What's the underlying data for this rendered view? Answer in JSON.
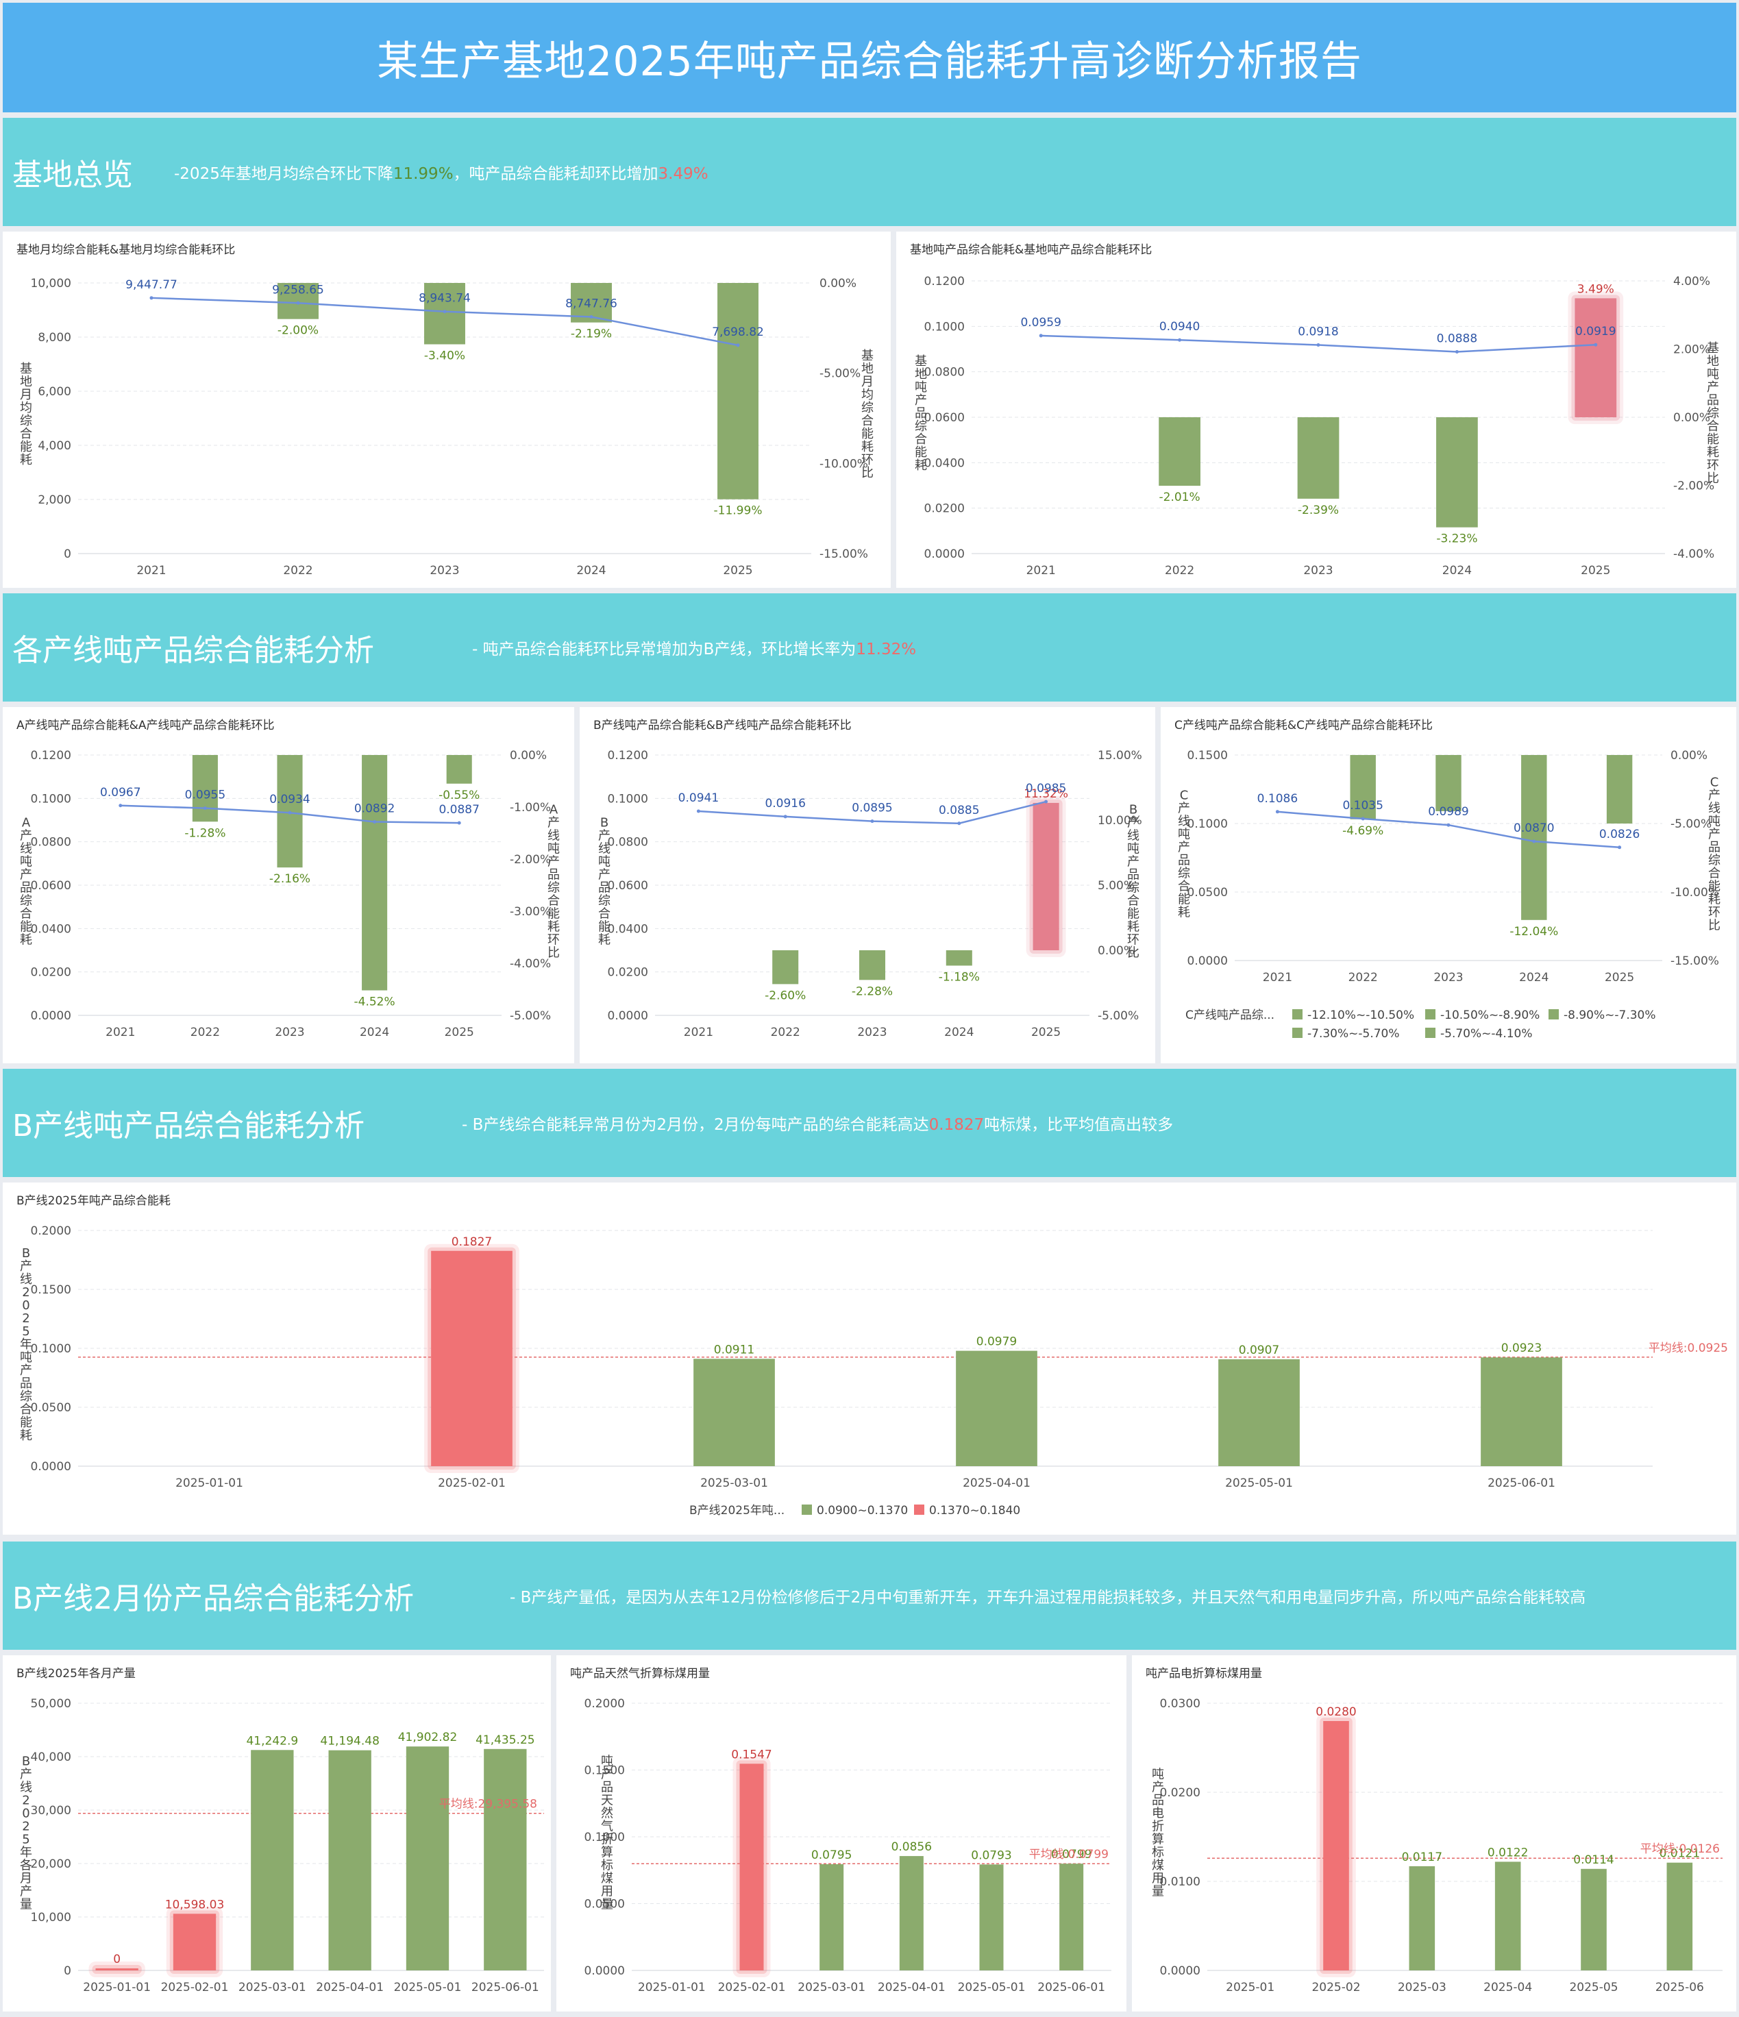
{
  "page": {
    "title": "某生产基地2025年吨产品综合能耗升高诊断分析报告"
  },
  "sections": [
    {
      "title": "基地总览",
      "note_pre": "-2025年基地月均综合环比下降",
      "note_hl": "11.99%",
      "note_mid": "，吨产品综合能耗却环比增加",
      "note_hl2": "3.49%",
      "note_post": ""
    },
    {
      "title": "各产线吨产品综合能耗分析",
      "note_pre": "- 吨产品综合能耗环比异常增加为B产线，环比增长率为",
      "note_hl": "11.32%",
      "note_mid": "",
      "note_hl2": "",
      "note_post": ""
    },
    {
      "title": "B产线吨产品综合能耗分析",
      "note_pre": "- B产线综合能耗异常月份为2月份，2月份每吨产品的综合能耗高达",
      "note_hl": "0.1827",
      "note_mid": "吨标煤，比平均值高出较多",
      "note_hl2": "",
      "note_post": ""
    },
    {
      "title": "B产线2月份产品综合能耗分析",
      "note_pre": "- B产线产量低，是因为从去年12月份检修修后于2月中旬重新开车，开车升温过程用能损耗较多，并且天然气和用电量同步升高，所以吨产品综合能耗较高",
      "note_hl": "",
      "note_mid": "",
      "note_hl2": "",
      "note_post": ""
    }
  ],
  "colors": {
    "green": "#8bab6d",
    "red": "#f07275",
    "pink": "#e47f8d",
    "line": "#6c8fdb",
    "blue_label": "#2f56a6",
    "green_label": "#5a8a22",
    "red_label": "#c83a3a",
    "avg": "#e46a6a"
  },
  "chart_data": [
    {
      "id": "c1",
      "type": "bar+line",
      "title": "基地月均综合能耗&基地月均综合能耗环比",
      "categories": [
        "2021",
        "2022",
        "2023",
        "2024",
        "2025"
      ],
      "ylabel": "基地月均综合能耗",
      "y2label": "基地月均综合能耗环比",
      "ylim": [
        0,
        10000
      ],
      "yticks": [
        0,
        2000,
        4000,
        6000,
        8000,
        10000
      ],
      "yticklabels": [
        "0",
        "2,000",
        "4,000",
        "6,000",
        "8,000",
        "10,000"
      ],
      "y2lim": [
        -15,
        0
      ],
      "y2ticks": [
        0,
        -5,
        -10,
        -15
      ],
      "y2ticklabels": [
        "0.00%",
        "-5.00%",
        "-10.00%",
        "-15.00%"
      ],
      "line": {
        "values": [
          9447.77,
          9258.65,
          8943.74,
          8747.76,
          7698.82
        ],
        "labels": [
          "9,447.77",
          "9,258.65",
          "8,943.74",
          "8,747.76",
          "7,698.82"
        ]
      },
      "bars": {
        "values": [
          null,
          -2.0,
          -3.4,
          -2.19,
          -11.99
        ],
        "labels": [
          "",
          "-2.00%",
          "-3.40%",
          "-2.19%",
          "-11.99%"
        ],
        "highlight": []
      }
    },
    {
      "id": "c2",
      "type": "bar+line",
      "title": "基地吨产品综合能耗&基地吨产品综合能耗环比",
      "categories": [
        "2021",
        "2022",
        "2023",
        "2024",
        "2025"
      ],
      "ylabel": "基地吨产品综合能耗",
      "y2label": "基地吨产品综合能耗环比",
      "ylim": [
        0,
        0.12
      ],
      "yticks": [
        0,
        0.02,
        0.04,
        0.06,
        0.08,
        0.1,
        0.12
      ],
      "yticklabels": [
        "0.0000",
        "0.0200",
        "0.0400",
        "0.0600",
        "0.0800",
        "0.1000",
        "0.1200"
      ],
      "y2lim": [
        -4,
        4
      ],
      "y2ticks": [
        4,
        2,
        0,
        -2,
        -4
      ],
      "y2ticklabels": [
        "4.00%",
        "2.00%",
        "0.00%",
        "-2.00%",
        "-4.00%"
      ],
      "line": {
        "values": [
          0.0959,
          0.094,
          0.0918,
          0.0888,
          0.0919
        ],
        "labels": [
          "0.0959",
          "0.0940",
          "0.0918",
          "0.0888",
          "0.0919"
        ]
      },
      "bars": {
        "values": [
          null,
          -2.01,
          -2.39,
          -3.23,
          3.49
        ],
        "labels": [
          "",
          "-2.01%",
          "-2.39%",
          "-3.23%",
          "3.49%"
        ],
        "highlight": [
          4
        ]
      }
    },
    {
      "id": "c3",
      "type": "bar+line",
      "title": "A产线吨产品综合能耗&A产线吨产品综合能耗环比",
      "categories": [
        "2021",
        "2022",
        "2023",
        "2024",
        "2025"
      ],
      "ylabel": "A产线吨产品综合能耗",
      "y2label": "A产线吨产品综合能耗环比",
      "ylim": [
        0,
        0.12
      ],
      "yticks": [
        0,
        0.02,
        0.04,
        0.06,
        0.08,
        0.1,
        0.12
      ],
      "yticklabels": [
        "0.0000",
        "0.0200",
        "0.0400",
        "0.0600",
        "0.0800",
        "0.1000",
        "0.1200"
      ],
      "y2lim": [
        -5,
        0
      ],
      "y2ticks": [
        0,
        -1,
        -2,
        -3,
        -4,
        -5
      ],
      "y2ticklabels": [
        "0.00%",
        "-1.00%",
        "-2.00%",
        "-3.00%",
        "-4.00%",
        "-5.00%"
      ],
      "line": {
        "values": [
          0.0967,
          0.0955,
          0.0934,
          0.0892,
          0.0887
        ],
        "labels": [
          "0.0967",
          "0.0955",
          "0.0934",
          "0.0892",
          "0.0887"
        ]
      },
      "bars": {
        "values": [
          null,
          -1.28,
          -2.16,
          -4.52,
          -0.55
        ],
        "labels": [
          "",
          "-1.28%",
          "-2.16%",
          "-4.52%",
          "-0.55%"
        ],
        "highlight": []
      }
    },
    {
      "id": "c4",
      "type": "bar+line",
      "title": "B产线吨产品综合能耗&B产线吨产品综合能耗环比",
      "categories": [
        "2021",
        "2022",
        "2023",
        "2024",
        "2025"
      ],
      "ylabel": "B产线吨产品综合能耗",
      "y2label": "B产线吨产品综合能耗环比",
      "ylim": [
        0,
        0.12
      ],
      "yticks": [
        0,
        0.02,
        0.04,
        0.06,
        0.08,
        0.1,
        0.12
      ],
      "yticklabels": [
        "0.0000",
        "0.0200",
        "0.0400",
        "0.0600",
        "0.0800",
        "0.1000",
        "0.1200"
      ],
      "y2lim": [
        -5,
        15
      ],
      "y2ticks": [
        15,
        10,
        5,
        0,
        -5
      ],
      "y2ticklabels": [
        "15.00%",
        "10.00%",
        "5.00%",
        "0.00%",
        "-5.00%"
      ],
      "line": {
        "values": [
          0.0941,
          0.0916,
          0.0895,
          0.0885,
          0.0985
        ],
        "labels": [
          "0.0941",
          "0.0916",
          "0.0895",
          "0.0885",
          "0.0985"
        ]
      },
      "bars": {
        "values": [
          null,
          -2.6,
          -2.28,
          -1.18,
          11.32
        ],
        "labels": [
          "",
          "-2.60%",
          "-2.28%",
          "-1.18%",
          "11.32%"
        ],
        "highlight": [
          4
        ]
      }
    },
    {
      "id": "c5",
      "type": "bar+line",
      "title": "C产线吨产品综合能耗&C产线吨产品综合能耗环比",
      "categories": [
        "2021",
        "2022",
        "2023",
        "2024",
        "2025"
      ],
      "ylabel": "C产线吨产品综合能耗",
      "y2label": "C产线吨产品综合能耗环比",
      "ylim": [
        0,
        0.15
      ],
      "yticks": [
        0,
        0.05,
        0.1,
        0.15
      ],
      "yticklabels": [
        "0.0000",
        "0.0500",
        "0.1000",
        "0.1500"
      ],
      "y2lim": [
        -15,
        0
      ],
      "y2ticks": [
        0,
        -5,
        -10,
        -15
      ],
      "y2ticklabels": [
        "0.00%",
        "-5.00%",
        "-10.00%",
        "-15.00%"
      ],
      "line": {
        "values": [
          0.1086,
          0.1035,
          0.0989,
          0.087,
          0.0826
        ],
        "labels": [
          "0.1086",
          "0.1035",
          "0.0989",
          "0.0870",
          "0.0826"
        ]
      },
      "bars": {
        "values": [
          null,
          -4.69,
          -4.1,
          -12.04,
          -5.0
        ],
        "labels": [
          "",
          "-4.69%",
          "",
          "-12.04%",
          ""
        ],
        "highlight": []
      },
      "legend": {
        "title": "C产线吨产品综...",
        "items": [
          "-12.10%~-10.50%",
          "-10.50%~-8.90%",
          "-8.90%~-7.30%",
          "-7.30%~-5.70%",
          "-5.70%~-4.10%"
        ]
      }
    },
    {
      "id": "c6",
      "type": "bar",
      "title": "B产线2025年吨产品综合能耗",
      "categories": [
        "2025-01-01",
        "2025-02-01",
        "2025-03-01",
        "2025-04-01",
        "2025-05-01",
        "2025-06-01"
      ],
      "ylabel": "B产线2025年吨产品综合能耗",
      "ylim": [
        0,
        0.2
      ],
      "yticks": [
        0,
        0.05,
        0.1,
        0.15,
        0.2
      ],
      "yticklabels": [
        "0.0000",
        "0.0500",
        "0.1000",
        "0.1500",
        "0.2000"
      ],
      "bars": {
        "values": [
          null,
          0.1827,
          0.0911,
          0.0979,
          0.0907,
          0.0923
        ],
        "labels": [
          "",
          "0.1827",
          "0.0911",
          "0.0979",
          "0.0907",
          "0.0923"
        ],
        "highlight": [
          1
        ]
      },
      "avg": {
        "value": 0.0925,
        "label": "平均线:0.0925"
      },
      "legend": {
        "title": "B产线2025年吨...",
        "items": [
          "0.0900~0.1370",
          "0.1370~0.1840"
        ]
      }
    },
    {
      "id": "c7",
      "type": "bar",
      "title": "B产线2025年各月产量",
      "categories": [
        "2025-01-01",
        "2025-02-01",
        "2025-03-01",
        "2025-04-01",
        "2025-05-01",
        "2025-06-01"
      ],
      "ylabel": "B产线2025年各月产量",
      "ylim": [
        0,
        50000
      ],
      "yticks": [
        0,
        10000,
        20000,
        30000,
        40000,
        50000
      ],
      "yticklabels": [
        "0",
        "10,000",
        "20,000",
        "30,000",
        "40,000",
        "50,000"
      ],
      "bars": {
        "values": [
          0,
          10598.03,
          41242.9,
          41194.48,
          41902.82,
          41435.25
        ],
        "labels": [
          "0",
          "10,598.03",
          "41,242.9",
          "41,194.48",
          "41,902.82",
          "41,435.25"
        ],
        "highlight": [
          0,
          1
        ]
      },
      "avg": {
        "value": 29395.58,
        "label": "平均线:29,395.58"
      }
    },
    {
      "id": "c8",
      "type": "bar",
      "title": "吨产品天然气折算标煤用量",
      "categories": [
        "2025-01-01",
        "2025-02-01",
        "2025-03-01",
        "2025-04-01",
        "2025-05-01",
        "2025-06-01"
      ],
      "ylabel": "吨产品天然气折算标煤用量",
      "ylim": [
        0,
        0.2
      ],
      "yticks": [
        0,
        0.05,
        0.1,
        0.15,
        0.2
      ],
      "yticklabels": [
        "0.0000",
        "0.0500",
        "0.1000",
        "0.1500",
        "0.2000"
      ],
      "bars": {
        "values": [
          null,
          0.1547,
          0.0795,
          0.0856,
          0.0793,
          0.0799
        ],
        "labels": [
          "",
          "0.1547",
          "0.0795",
          "0.0856",
          "0.0793",
          "0.0799"
        ],
        "highlight": [
          1
        ]
      },
      "avg": {
        "value": 0.0799,
        "label": "平均线:0.0799"
      }
    },
    {
      "id": "c9",
      "type": "bar",
      "title": "吨产品电折算标煤用量",
      "categories": [
        "2025-01",
        "2025-02",
        "2025-03",
        "2025-04",
        "2025-05",
        "2025-06"
      ],
      "ylabel": "吨产品电折算标煤用量",
      "ylim": [
        0,
        0.03
      ],
      "yticks": [
        0,
        0.01,
        0.02,
        0.03
      ],
      "yticklabels": [
        "0.0000",
        "0.0100",
        "0.0200",
        "0.0300"
      ],
      "bars": {
        "values": [
          null,
          0.028,
          0.0117,
          0.0122,
          0.0114,
          0.0121
        ],
        "labels": [
          "",
          "0.0280",
          "0.0117",
          "0.0122",
          "0.0114",
          "0.0121"
        ],
        "highlight": [
          1
        ]
      },
      "avg": {
        "value": 0.0126,
        "label": "平均线:0.0126"
      }
    }
  ]
}
